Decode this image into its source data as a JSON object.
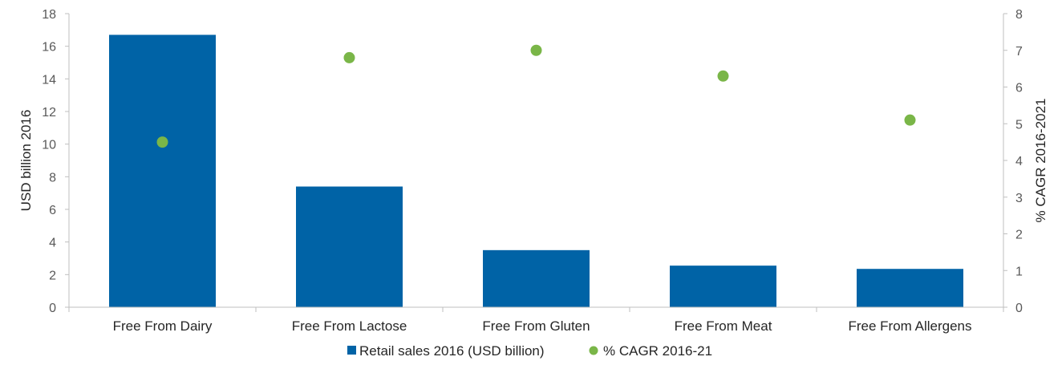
{
  "chart_data": {
    "type": "bar",
    "categories": [
      "Free From Dairy",
      "Free From Lactose",
      "Free From Gluten",
      "Free From Meat",
      "Free From Allergens"
    ],
    "series": [
      {
        "name": "Retail sales 2016 (USD billion)",
        "type": "bar",
        "axis": "left",
        "values": [
          16.7,
          7.4,
          3.5,
          2.55,
          2.35
        ],
        "color": "#0063A6"
      },
      {
        "name": "% CAGR 2016-21",
        "type": "scatter",
        "axis": "right",
        "values": [
          4.5,
          6.8,
          7.0,
          6.3,
          5.1
        ],
        "color": "#7AB648"
      }
    ],
    "ylabel": "USD billion 2016",
    "ylabel_right": "% CAGR 2016-2021",
    "ylim": [
      0,
      18
    ],
    "ylim_right": [
      0,
      8
    ],
    "yticks": [
      "0",
      "2",
      "4",
      "6",
      "8",
      "10",
      "12",
      "14",
      "16",
      "18"
    ],
    "yticks_right": [
      "0",
      "1",
      "2",
      "3",
      "4",
      "5",
      "6",
      "7",
      "8"
    ],
    "grid": false,
    "legend": "bottom"
  }
}
